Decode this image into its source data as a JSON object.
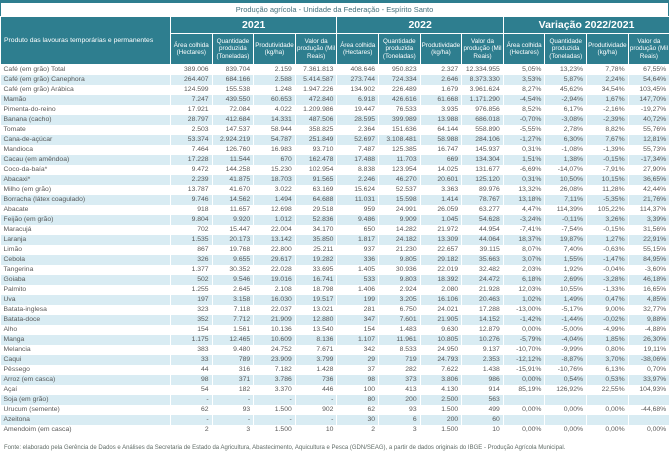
{
  "title": "Produção agrícola - Unidade da Federação - Espírito Santo",
  "colors": {
    "header_teal": "#2E7E8F",
    "stripe_blue": "#D9ECF3",
    "text_gray": "#595959"
  },
  "footer": {
    "source": "Fonte: elaborado pela Gerência de Dados e Análises da Secretaria de Estado da Agricultura, Abastecimento, Aquicultura e Pesca (GDN/SEAG), a partir de dados originais do IBGE - Produção Agrícola Municipal."
  },
  "table": {
    "product_header": "Produto das lavouras temporárias e permanentes",
    "year_groups": [
      "2021",
      "2022",
      "Variação 2022/2021"
    ],
    "metric_headers": [
      "Área colhida (Hectares)",
      "Quantidade produzida (Toneladas)",
      "Produtividade (kg/ha)",
      "Valor da produção (Mil Reais)"
    ],
    "rows": [
      {
        "product": "Café (em grão) Total",
        "c2021": [
          "389.006",
          "839.704",
          "2.159",
          "7.361.813"
        ],
        "c2022": [
          "408.646",
          "950.823",
          "2.327",
          "12.334.955"
        ],
        "variation": [
          "5,05%",
          "13,23%",
          "7,78%",
          "67,55%"
        ]
      },
      {
        "product": "Café (em grão) Canephora",
        "c2021": [
          "264.407",
          "684.166",
          "2.588",
          "5.414.587"
        ],
        "c2022": [
          "273.744",
          "724.334",
          "2.646",
          "8.373.330"
        ],
        "variation": [
          "3,53%",
          "5,87%",
          "2,24%",
          "54,64%"
        ]
      },
      {
        "product": "Café (em grão) Arábica",
        "c2021": [
          "124.599",
          "155.538",
          "1.248",
          "1.947.226"
        ],
        "c2022": [
          "134.902",
          "226.489",
          "1.679",
          "3.961.624"
        ],
        "variation": [
          "8,27%",
          "45,62%",
          "34,54%",
          "103,45%"
        ]
      },
      {
        "product": "Mamão",
        "c2021": [
          "7.247",
          "439.550",
          "60.653",
          "472.840"
        ],
        "c2022": [
          "6.918",
          "426.616",
          "61.668",
          "1.171.290"
        ],
        "variation": [
          "-4,54%",
          "-2,94%",
          "1,67%",
          "147,70%"
        ]
      },
      {
        "product": "Pimenta-do-reino",
        "c2021": [
          "17.921",
          "72.084",
          "4.022",
          "1.209.986"
        ],
        "c2022": [
          "19.447",
          "76.533",
          "3.935",
          "976.856"
        ],
        "variation": [
          "8,52%",
          "6,17%",
          "-2,16%",
          "-19,27%"
        ]
      },
      {
        "product": "Banana (cacho)",
        "c2021": [
          "28.797",
          "412.684",
          "14.331",
          "487.506"
        ],
        "c2022": [
          "28.595",
          "399.989",
          "13.988",
          "686.018"
        ],
        "variation": [
          "-0,70%",
          "-3,08%",
          "-2,39%",
          "40,72%"
        ]
      },
      {
        "product": "Tomate",
        "c2021": [
          "2.503",
          "147.537",
          "58.944",
          "358.825"
        ],
        "c2022": [
          "2.364",
          "151.636",
          "64.144",
          "558.890"
        ],
        "variation": [
          "-5,55%",
          "2,78%",
          "8,82%",
          "55,76%"
        ]
      },
      {
        "product": "Cana-de-açúcar",
        "c2021": [
          "53.374",
          "2.924.219",
          "54.787",
          "251.849"
        ],
        "c2022": [
          "52.697",
          "3.108.481",
          "58.988",
          "284.106"
        ],
        "variation": [
          "-1,27%",
          "6,30%",
          "7,67%",
          "12,81%"
        ]
      },
      {
        "product": "Mandioca",
        "c2021": [
          "7.464",
          "126.760",
          "16.983",
          "93.710"
        ],
        "c2022": [
          "7.487",
          "125.385",
          "16.747",
          "145.937"
        ],
        "variation": [
          "0,31%",
          "-1,08%",
          "-1,39%",
          "55,73%"
        ]
      },
      {
        "product": "Cacau (em amêndoa)",
        "c2021": [
          "17.228",
          "11.544",
          "670",
          "162.478"
        ],
        "c2022": [
          "17.488",
          "11.703",
          "669",
          "134.304"
        ],
        "variation": [
          "1,51%",
          "1,38%",
          "-0,15%",
          "-17,34%"
        ]
      },
      {
        "product": "Coco-da-baía*",
        "c2021": [
          "9.472",
          "144.258",
          "15.230",
          "102.954"
        ],
        "c2022": [
          "8.838",
          "123.954",
          "14.025",
          "131.677"
        ],
        "variation": [
          "-6,69%",
          "-14,07%",
          "-7,91%",
          "27,90%"
        ]
      },
      {
        "product": "Abacaxi*",
        "c2021": [
          "2.239",
          "41.875",
          "18.703",
          "91.565"
        ],
        "c2022": [
          "2.246",
          "46.270",
          "20.601",
          "125.120"
        ],
        "variation": [
          "0,31%",
          "10,50%",
          "10,15%",
          "36,65%"
        ]
      },
      {
        "product": "Milho (em grão)",
        "c2021": [
          "13.787",
          "41.670",
          "3.022",
          "63.169"
        ],
        "c2022": [
          "15.624",
          "52.537",
          "3.363",
          "89.976"
        ],
        "variation": [
          "13,32%",
          "26,08%",
          "11,28%",
          "42,44%"
        ]
      },
      {
        "product": "Borracha (látex coagulado)",
        "c2021": [
          "9.746",
          "14.562",
          "1.494",
          "64.688"
        ],
        "c2022": [
          "11.031",
          "15.598",
          "1.414",
          "78.767"
        ],
        "variation": [
          "13,18%",
          "7,11%",
          "-5,35%",
          "21,76%"
        ]
      },
      {
        "product": "Abacate",
        "c2021": [
          "918",
          "11.657",
          "12.698",
          "29.518"
        ],
        "c2022": [
          "959",
          "24.991",
          "26.059",
          "63.277"
        ],
        "variation": [
          "4,47%",
          "114,39%",
          "105,22%",
          "114,37%"
        ]
      },
      {
        "product": "Feijão (em grão)",
        "c2021": [
          "9.804",
          "9.920",
          "1.012",
          "52.836"
        ],
        "c2022": [
          "9.486",
          "9.909",
          "1.045",
          "54.628"
        ],
        "variation": [
          "-3,24%",
          "-0,11%",
          "3,26%",
          "3,39%"
        ]
      },
      {
        "product": "Maracujá",
        "c2021": [
          "702",
          "15.447",
          "22.004",
          "34.170"
        ],
        "c2022": [
          "650",
          "14.282",
          "21.972",
          "44.954"
        ],
        "variation": [
          "-7,41%",
          "-7,54%",
          "-0,15%",
          "31,56%"
        ]
      },
      {
        "product": "Laranja",
        "c2021": [
          "1.535",
          "20.173",
          "13.142",
          "35.850"
        ],
        "c2022": [
          "1.817",
          "24.182",
          "13.309",
          "44.064"
        ],
        "variation": [
          "18,37%",
          "19,87%",
          "1,27%",
          "22,91%"
        ]
      },
      {
        "product": "Limão",
        "c2021": [
          "867",
          "19.768",
          "22.800",
          "25.211"
        ],
        "c2022": [
          "937",
          "21.230",
          "22.657",
          "39.115"
        ],
        "variation": [
          "8,07%",
          "7,40%",
          "-0,63%",
          "55,15%"
        ]
      },
      {
        "product": "Cebola",
        "c2021": [
          "326",
          "9.655",
          "29.617",
          "19.282"
        ],
        "c2022": [
          "336",
          "9.805",
          "29.182",
          "35.663"
        ],
        "variation": [
          "3,07%",
          "1,55%",
          "-1,47%",
          "84,95%"
        ]
      },
      {
        "product": "Tangerina",
        "c2021": [
          "1.377",
          "30.352",
          "22.028",
          "33.695"
        ],
        "c2022": [
          "1.405",
          "30.936",
          "22.019",
          "32.482"
        ],
        "variation": [
          "2,03%",
          "1,92%",
          "-0,04%",
          "-3,60%"
        ]
      },
      {
        "product": "Goiaba",
        "c2021": [
          "502",
          "9.546",
          "19.016",
          "16.741"
        ],
        "c2022": [
          "533",
          "9.803",
          "18.392",
          "24.472"
        ],
        "variation": [
          "6,18%",
          "2,69%",
          "-3,28%",
          "46,18%"
        ]
      },
      {
        "product": "Palmito",
        "c2021": [
          "1.255",
          "2.645",
          "2.108",
          "18.798"
        ],
        "c2022": [
          "1.406",
          "2.924",
          "2.080",
          "21.928"
        ],
        "variation": [
          "12,03%",
          "10,55%",
          "-1,33%",
          "16,65%"
        ]
      },
      {
        "product": "Uva",
        "c2021": [
          "197",
          "3.158",
          "16.030",
          "19.517"
        ],
        "c2022": [
          "199",
          "3.205",
          "16.106",
          "20.463"
        ],
        "variation": [
          "1,02%",
          "1,49%",
          "0,47%",
          "4,85%"
        ]
      },
      {
        "product": "Batata-inglesa",
        "c2021": [
          "323",
          "7.118",
          "22.037",
          "13.021"
        ],
        "c2022": [
          "281",
          "6.750",
          "24.021",
          "17.288"
        ],
        "variation": [
          "-13,00%",
          "-5,17%",
          "9,00%",
          "32,77%"
        ]
      },
      {
        "product": "Batata-doce",
        "c2021": [
          "352",
          "7.712",
          "21.909",
          "12.880"
        ],
        "c2022": [
          "347",
          "7.601",
          "21.905",
          "14.152"
        ],
        "variation": [
          "-1,42%",
          "-1,44%",
          "-0,02%",
          "9,88%"
        ]
      },
      {
        "product": "Alho",
        "c2021": [
          "154",
          "1.561",
          "10.136",
          "13.540"
        ],
        "c2022": [
          "154",
          "1.483",
          "9.630",
          "12.879"
        ],
        "variation": [
          "0,00%",
          "-5,00%",
          "-4,99%",
          "-4,88%"
        ]
      },
      {
        "product": "Manga",
        "c2021": [
          "1.175",
          "12.465",
          "10.609",
          "8.136"
        ],
        "c2022": [
          "1.107",
          "11.961",
          "10.805",
          "10.276"
        ],
        "variation": [
          "-5,79%",
          "-4,04%",
          "1,85%",
          "26,30%"
        ]
      },
      {
        "product": "Melancia",
        "c2021": [
          "383",
          "9.480",
          "24.752",
          "7.671"
        ],
        "c2022": [
          "342",
          "8.533",
          "24.950",
          "9.137"
        ],
        "variation": [
          "-10,70%",
          "-9,99%",
          "0,80%",
          "19,11%"
        ]
      },
      {
        "product": "Caqui",
        "c2021": [
          "33",
          "789",
          "23.909",
          "3.799"
        ],
        "c2022": [
          "29",
          "719",
          "24.793",
          "2.353"
        ],
        "variation": [
          "-12,12%",
          "-8,87%",
          "3,70%",
          "-38,06%"
        ]
      },
      {
        "product": "Pêssego",
        "c2021": [
          "44",
          "316",
          "7.182",
          "1.428"
        ],
        "c2022": [
          "37",
          "282",
          "7.622",
          "1.438"
        ],
        "variation": [
          "-15,91%",
          "-10,76%",
          "6,13%",
          "0,70%"
        ]
      },
      {
        "product": "Arroz (em casca)",
        "c2021": [
          "98",
          "371",
          "3.786",
          "736"
        ],
        "c2022": [
          "98",
          "373",
          "3.806",
          "986"
        ],
        "variation": [
          "0,00%",
          "0,54%",
          "0,53%",
          "33,97%"
        ]
      },
      {
        "product": "Açaí",
        "c2021": [
          "54",
          "182",
          "3.370",
          "446"
        ],
        "c2022": [
          "100",
          "413",
          "4.130",
          "914"
        ],
        "variation": [
          "85,19%",
          "126,92%",
          "22,55%",
          "104,93%"
        ]
      },
      {
        "product": "Soja (em grão)",
        "c2021": [
          "-",
          "-",
          "-",
          "-"
        ],
        "c2022": [
          "80",
          "200",
          "2.500",
          "563"
        ],
        "variation": [
          "",
          "",
          "",
          ""
        ]
      },
      {
        "product": "Urucum (semente)",
        "c2021": [
          "62",
          "93",
          "1.500",
          "902"
        ],
        "c2022": [
          "62",
          "93",
          "1.500",
          "499"
        ],
        "variation": [
          "0,00%",
          "0,00%",
          "0,00%",
          "-44,68%"
        ]
      },
      {
        "product": "Azeitona",
        "c2021": [
          "-",
          "-",
          "-",
          "-"
        ],
        "c2022": [
          "30",
          "6",
          "200",
          "60"
        ],
        "variation": [
          "",
          "",
          "",
          ""
        ]
      },
      {
        "product": "Amendoim (em casca)",
        "c2021": [
          "2",
          "3",
          "1.500",
          "10"
        ],
        "c2022": [
          "2",
          "3",
          "1.500",
          "10"
        ],
        "variation": [
          "0,00%",
          "0,00%",
          "0,00%",
          "0,00%"
        ]
      }
    ]
  }
}
